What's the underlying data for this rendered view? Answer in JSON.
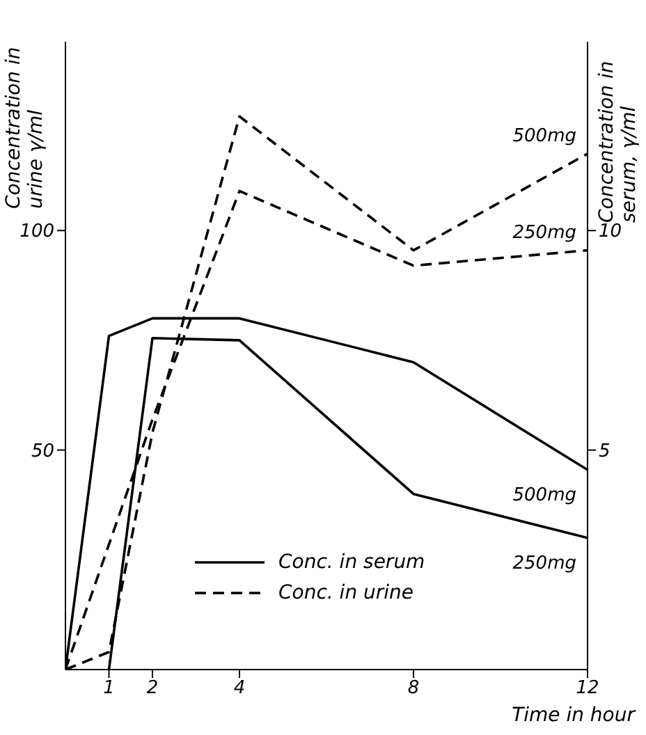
{
  "chart_data": {
    "type": "line",
    "ylabel": "Concentration in urine γ/ml",
    "y2label": "Concentration in serum, γ/ml",
    "xlabel": "Time in hour",
    "xlim": [
      0,
      12
    ],
    "xticks": [
      1,
      2,
      4,
      8,
      12
    ],
    "ylim": [
      0,
      143
    ],
    "yticks": [
      50,
      100
    ],
    "y2lim": [
      0,
      14.3
    ],
    "y2ticks": [
      5,
      10
    ],
    "series": [
      {
        "name": "500mg",
        "color": "#000000",
        "line_style": "solid",
        "axis": "y2",
        "x": [
          0,
          1,
          2,
          4,
          8,
          12
        ],
        "values": [
          0,
          7.6,
          8.0,
          8.0,
          7.0,
          4.55
        ]
      },
      {
        "name": "250mg",
        "color": "#000000",
        "line_style": "solid",
        "axis": "y2",
        "x": [
          1,
          2,
          4,
          8,
          12
        ],
        "values": [
          0,
          7.55,
          7.5,
          4.0,
          3.0
        ]
      },
      {
        "name": "500mg",
        "color": "#000000",
        "line_style": "dashed",
        "x": [
          0,
          1,
          2,
          4,
          8,
          12
        ],
        "values": [
          0,
          4,
          54,
          126,
          95.5,
          117.5
        ]
      },
      {
        "name": "250mg",
        "color": "#000000",
        "line_style": "dashed",
        "x": [
          0,
          2,
          4,
          8,
          12
        ],
        "values": [
          0,
          57,
          109,
          92,
          95.5
        ]
      }
    ],
    "annotations": [
      "Conc. in serum",
      "Conc. in urine"
    ]
  }
}
